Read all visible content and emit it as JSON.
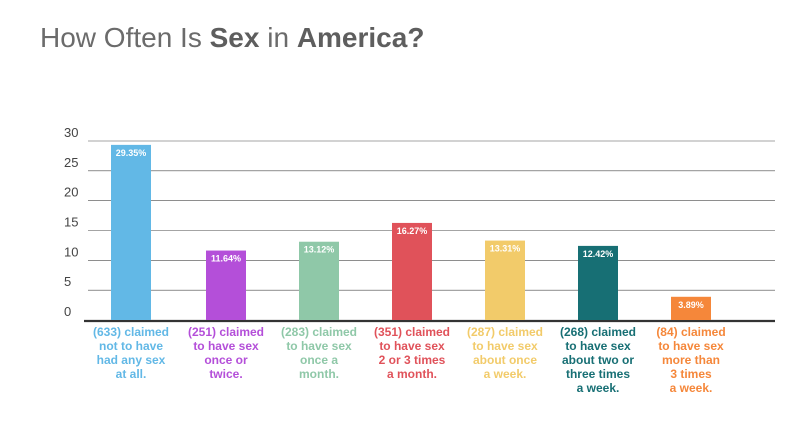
{
  "title": {
    "part1": "How Often Is ",
    "part2": "Sex",
    "part3": " in ",
    "part4": "America?"
  },
  "chart_data": {
    "type": "bar",
    "title": "How Often Is Sex in America?",
    "xlabel": "",
    "ylabel": "",
    "ylim": [
      0,
      30
    ],
    "yticks": [
      0,
      5,
      10,
      15,
      20,
      25,
      30
    ],
    "grid": true,
    "legend": "none",
    "categories": [
      [
        "(633) claimed",
        "not to have",
        "had any sex",
        "at all."
      ],
      [
        "(251) claimed",
        "to have sex",
        "once or",
        "twice."
      ],
      [
        "(283) claimed",
        "to have sex",
        "once a",
        "month."
      ],
      [
        "(351) claimed",
        "to have sex",
        "2 or 3 times",
        "a month."
      ],
      [
        "(287) claimed",
        "to have sex",
        "about once",
        "a week."
      ],
      [
        "(268) claimed",
        "to have sex",
        "about two or",
        "three times",
        "a week."
      ],
      [
        "(84) claimed",
        "to have sex",
        "more than",
        "3 times",
        "a week."
      ]
    ],
    "values": [
      29.35,
      11.64,
      13.12,
      16.27,
      13.31,
      12.42,
      3.89
    ],
    "value_labels": [
      "29.35%",
      "11.64%",
      "13.12%",
      "16.27%",
      "13.31%",
      "12.42%",
      "3.89%"
    ],
    "colors": [
      "#62b8e6",
      "#b44fd9",
      "#8fc8a8",
      "#e0525a",
      "#f2cb6a",
      "#176f74",
      "#f5873a"
    ]
  }
}
